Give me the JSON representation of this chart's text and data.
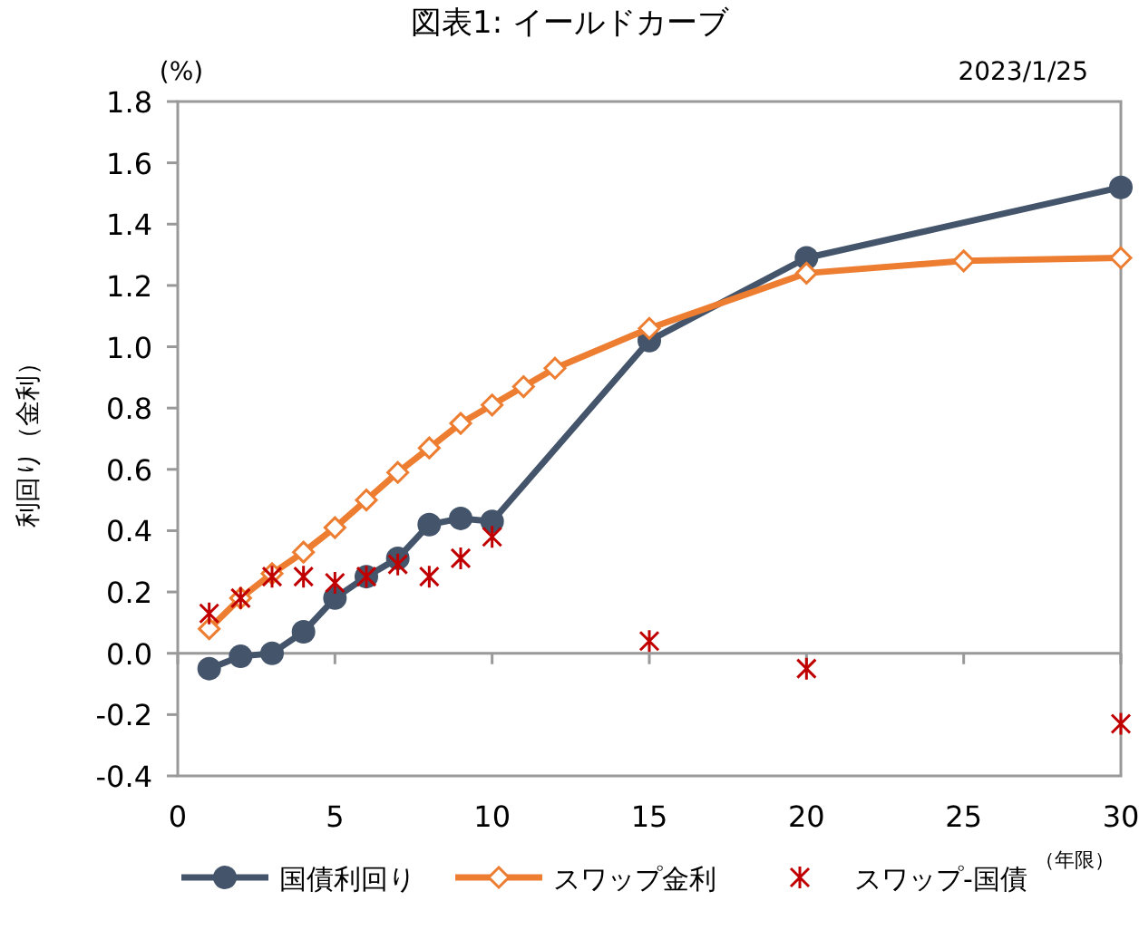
{
  "chart_data": {
    "type": "line",
    "title": "図表1: イールドカーブ",
    "subtitle": "2023/1/25",
    "ylabel": "利回り（金利）",
    "xlabel": "（年限）",
    "annotations": [
      "(%)"
    ],
    "xlim": [
      0,
      30
    ],
    "xticks": [
      0,
      5,
      10,
      15,
      20,
      25,
      30
    ],
    "ylim": [
      -0.4,
      1.8
    ],
    "yticks": [
      {
        "value": -0.4,
        "label": "-0.4"
      },
      {
        "value": -0.2,
        "label": "-0.2"
      },
      {
        "value": 0,
        "label": "0.0"
      },
      {
        "value": 0.2,
        "label": "0.2"
      },
      {
        "value": 0.4,
        "label": "0.4"
      },
      {
        "value": 0.6,
        "label": "0.6"
      },
      {
        "value": 0.8,
        "label": "0.8"
      },
      {
        "value": 1,
        "label": "1.0"
      },
      {
        "value": 1.2,
        "label": "1.2"
      },
      {
        "value": 1.4,
        "label": "1.4"
      },
      {
        "value": 1.6,
        "label": "1.6"
      },
      {
        "value": 1.8,
        "label": "1.8"
      }
    ],
    "legend": "bottom",
    "series": [
      {
        "name": "国債利回り",
        "marker": "circle",
        "color": "#44546a",
        "x": [
          1,
          2,
          3,
          4,
          5,
          6,
          7,
          8,
          9,
          10,
          15,
          20,
          30
        ],
        "values": [
          -0.05,
          -0.01,
          0.0,
          0.07,
          0.18,
          0.25,
          0.31,
          0.42,
          0.44,
          0.43,
          1.02,
          1.29,
          1.52
        ]
      },
      {
        "name": "スワップ金利",
        "marker": "diamond",
        "color": "#ed7d31",
        "x": [
          1,
          2,
          3,
          4,
          5,
          6,
          7,
          8,
          9,
          10,
          11,
          12,
          15,
          20,
          25,
          30
        ],
        "values": [
          0.08,
          0.18,
          0.26,
          0.33,
          0.41,
          0.5,
          0.59,
          0.67,
          0.75,
          0.81,
          0.87,
          0.93,
          1.06,
          1.24,
          1.28,
          1.29
        ]
      },
      {
        "name": "スワップ-国債",
        "type": "scatter",
        "marker": "cross",
        "color": "#c00000",
        "x": [
          1,
          2,
          3,
          4,
          5,
          6,
          7,
          8,
          9,
          10,
          15,
          20,
          30
        ],
        "values": [
          0.13,
          0.18,
          0.25,
          0.25,
          0.23,
          0.25,
          0.29,
          0.25,
          0.31,
          0.38,
          0.04,
          -0.05,
          -0.23
        ]
      }
    ]
  }
}
